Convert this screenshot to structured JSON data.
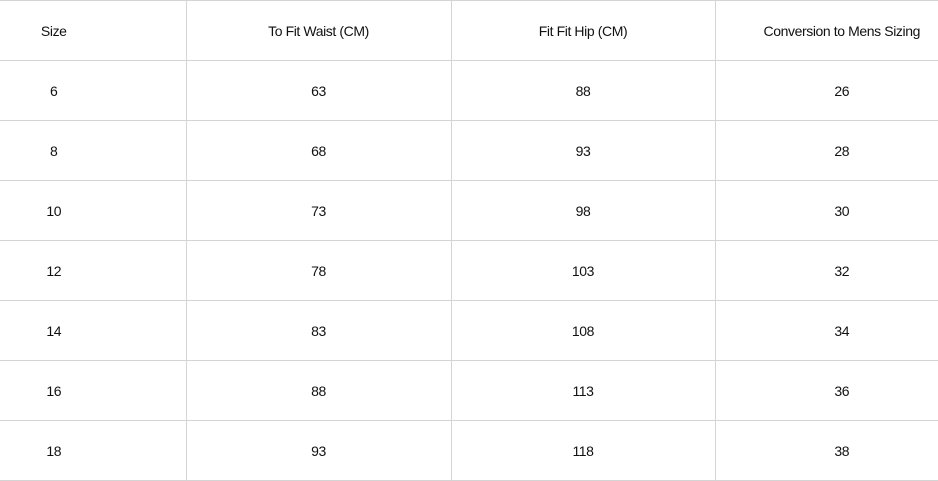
{
  "table": {
    "headers": [
      "Size",
      "To Fit Waist (CM)",
      "Fit Fit Hip (CM)",
      "Conversion to Mens Sizing"
    ],
    "rows": [
      [
        "6",
        "63",
        "88",
        "26"
      ],
      [
        "8",
        "68",
        "93",
        "28"
      ],
      [
        "10",
        "73",
        "98",
        "30"
      ],
      [
        "12",
        "78",
        "103",
        "32"
      ],
      [
        "14",
        "83",
        "108",
        "34"
      ],
      [
        "16",
        "88",
        "113",
        "36"
      ],
      [
        "18",
        "93",
        "118",
        "38"
      ]
    ]
  }
}
